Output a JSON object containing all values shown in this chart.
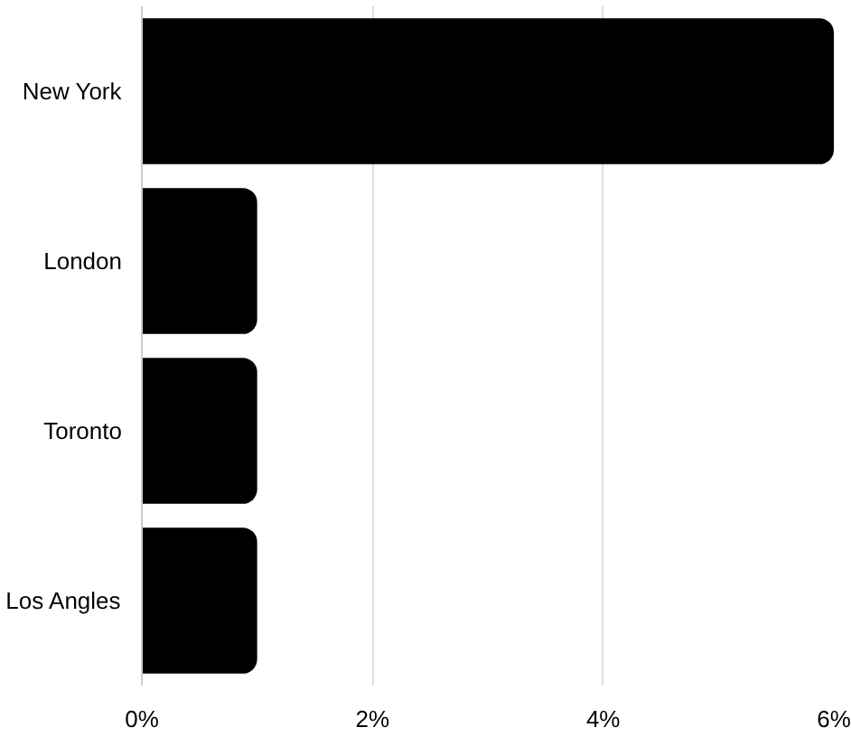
{
  "chart_data": {
    "type": "bar",
    "orientation": "horizontal",
    "categories": [
      "New York",
      "London",
      "Toronto",
      "Los Angles"
    ],
    "values": [
      6,
      1,
      1,
      1
    ],
    "color": "#000000",
    "xlim": [
      0,
      6
    ],
    "xticks": [
      {
        "value": 0,
        "label": "0%"
      },
      {
        "value": 2,
        "label": "2%"
      },
      {
        "value": 4,
        "label": "4%"
      },
      {
        "value": 6,
        "label": "6%"
      }
    ],
    "grid": "x"
  }
}
